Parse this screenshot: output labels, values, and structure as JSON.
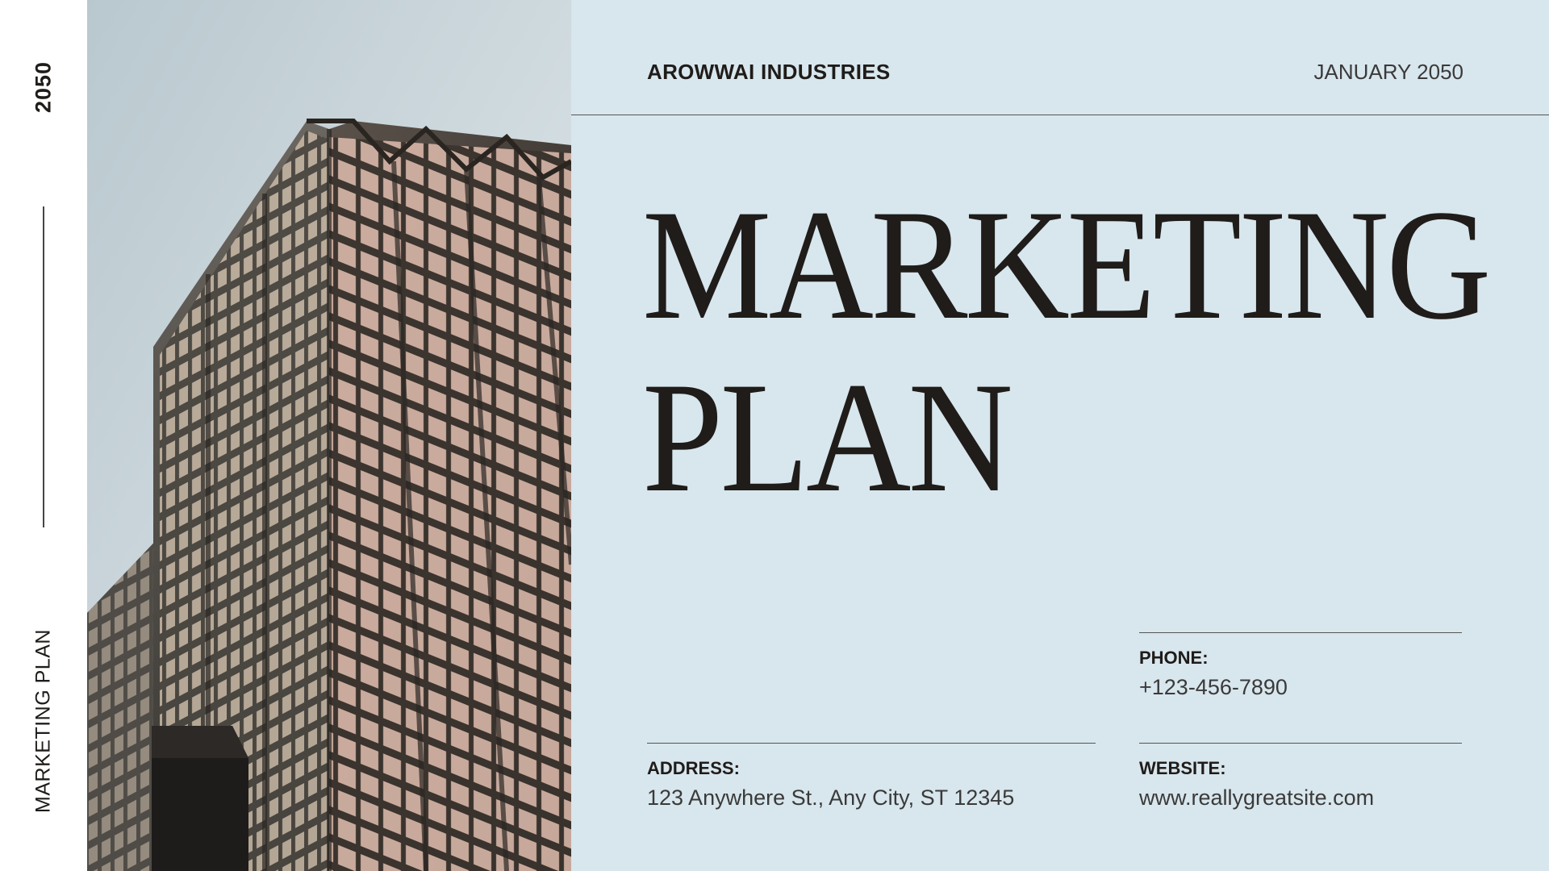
{
  "sidebar": {
    "year": "2050",
    "title": "MARKETING PLAN"
  },
  "header": {
    "company": "AROWWAI INDUSTRIES",
    "date": "JANUARY 2050"
  },
  "headline": {
    "line1": "MARKETING",
    "line2": "PLAN"
  },
  "contact": {
    "phone": {
      "label": "PHONE:",
      "value": "+123-456-7890"
    },
    "address": {
      "label": "ADDRESS:",
      "value": "123 Anywhere St., Any City, ST 12345"
    },
    "website": {
      "label": "WEBSITE:",
      "value": "www.reallygreatsite.com"
    }
  },
  "colors": {
    "panel_background": "#d8e6ed",
    "text_dark": "#1f1c19",
    "text_muted": "#3a3a3a",
    "rule": "#555555"
  },
  "image": {
    "subject": "glass-skyscraper-photo"
  }
}
